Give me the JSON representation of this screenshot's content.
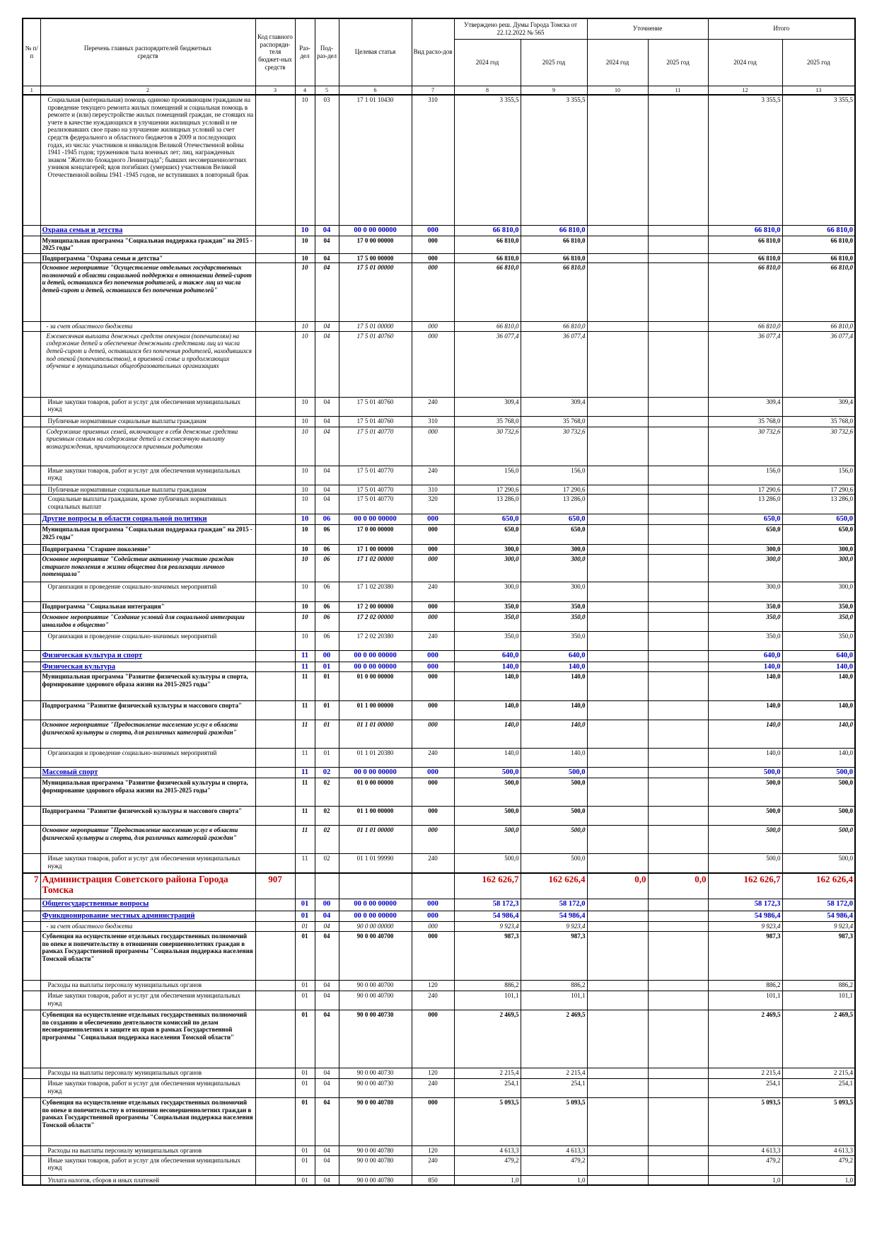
{
  "table": {
    "header": {
      "number": "№ п/п",
      "name": "Перечень главных распорядителей бюджетных средств",
      "code": "Код главного распоряди-теля бюджет-ных средств",
      "section": "Раз-дел",
      "subsection": "Под-раз-дел",
      "target": "Целевая статья",
      "expense_type": "Вид расхо-дов",
      "approved": "Утверждено реш. Думы Города Томска от 22.12.2022 № 565",
      "clarification": "Уточнение",
      "total": "Итого",
      "years": [
        "2024 год",
        "2025 год",
        "2024 год",
        "2025 год",
        "2024 год",
        "2025 год"
      ],
      "column_numbers": [
        1,
        2,
        3,
        4,
        5,
        6,
        7,
        8,
        9,
        10,
        11,
        12,
        13
      ]
    },
    "rows": [
      {
        "style": "plain",
        "cells": [
          null,
          "Социальная (материальная) помощь одиноко проживающим гражданам на проведение текущего ремонта жилых помещений и социальная помощь в ремонте и (или) переустройстве жилых помещений граждан, не стоящих на учете в качестве нуждающихся в улучшении жилищных условий и не реализовавших свое право на улучшение жилищных условий за счет средств федерального и областного бюджетов в 2009 и последующих годах, из числа: участников и инвалидов Великой Отечественной войны 1941 -1945 годов; тружеников тыла военных лет; лиц, награжденных знаком \"Жителю блокадного Ленинграда\"; бывших несовершеннолетних узников концлагерей; вдов погибших (умерших) участников Великой Отечественной войны 1941 -1945 годов, не вступивших в повторный брак",
          null,
          "10",
          "03",
          "17 1 01 10430",
          "310",
          "3 355,5",
          "3 355,5",
          null,
          null,
          "3 355,5",
          "3 355,5"
        ]
      },
      {
        "style": "section",
        "cells": [
          null,
          "Охрана семьи и детства",
          null,
          "10",
          "04",
          "00 0 00 00000",
          "000",
          "66 810,0",
          "66 810,0",
          null,
          null,
          "66 810,0",
          "66 810,0"
        ]
      },
      {
        "style": "bold",
        "cells": [
          null,
          "Муниципальная программа \"Социальная поддержка граждан\" на 2015 - 2025 годы\"",
          null,
          "10",
          "04",
          "17 0 00 00000",
          "000",
          "66 810,0",
          "66 810,0",
          null,
          null,
          "66 810,0",
          "66 810,0"
        ]
      },
      {
        "style": "bold",
        "cells": [
          null,
          "Подпрограмма \"Охрана семьи и детства\"",
          null,
          "10",
          "04",
          "17 5 00 00000",
          "000",
          "66 810,0",
          "66 810,0",
          null,
          null,
          "66 810,0",
          "66 810,0"
        ]
      },
      {
        "style": "bold-italic",
        "cells": [
          null,
          "Основное мероприятие \"Осуществление отдельных государственных полномочий в области социальной поддержки в отношении детей-сирот и детей, оставшихся без попечения родителей, а также лиц из числа детей-сирот и детей, оставшихся без попечения родителей\"",
          null,
          "10",
          "04",
          "17 5 01 00000",
          "000",
          "66 810,0",
          "66 810,0",
          null,
          null,
          "66 810,0",
          "66 810,0"
        ]
      },
      {
        "style": "italic",
        "cells": [
          null,
          "- за счет областного бюджета",
          null,
          "10",
          "04",
          "17 5 01 00000",
          "000",
          "66 810,0",
          "66 810,0",
          null,
          null,
          "66 810,0",
          "66 810,0"
        ]
      },
      {
        "style": "italic",
        "cells": [
          null,
          "Ежемесячная выплата денежных средств опекунам (попечителям) на содержание детей и обеспечение денежными средствами лиц из числа детей-сирот и детей, оставшихся без попечения родителей, находившихся под опекой (попечительством), в приемной семье и продолжающих обучение в муниципальных общеобразовательных организациях",
          null,
          "10",
          "04",
          "17 5 01 40760",
          "000",
          "36 077,4",
          "36 077,4",
          null,
          null,
          "36 077,4",
          "36 077,4"
        ]
      },
      {
        "style": "plain",
        "cells": [
          null,
          "Иные закупки товаров, работ и услуг для обеспечения муниципальных нужд",
          null,
          "10",
          "04",
          "17 5 01 40760",
          "240",
          "309,4",
          "309,4",
          null,
          null,
          "309,4",
          "309,4"
        ]
      },
      {
        "style": "plain",
        "cells": [
          null,
          "Публичные нормативные социальные выплаты гражданам",
          null,
          "10",
          "04",
          "17 5 01 40760",
          "310",
          "35 768,0",
          "35 768,0",
          null,
          null,
          "35 768,0",
          "35 768,0"
        ]
      },
      {
        "style": "italic",
        "cells": [
          null,
          "Содержание приемных семей, включающее в себя денежные средства приемным семьям на содержание детей и ежемесячную выплату вознаграждения, причитающегося приемным родителям",
          null,
          "10",
          "04",
          "17 5 01 40770",
          "000",
          "30 732,6",
          "30 732,6",
          null,
          null,
          "30 732,6",
          "30 732,6"
        ]
      },
      {
        "style": "plain",
        "cells": [
          null,
          "Иные закупки товаров, работ и услуг для обеспечения муниципальных нужд",
          null,
          "10",
          "04",
          "17 5 01 40770",
          "240",
          "156,0",
          "156,0",
          null,
          null,
          "156,0",
          "156,0"
        ]
      },
      {
        "style": "plain",
        "cells": [
          null,
          "Публичные нормативные социальные выплаты гражданам",
          null,
          "10",
          "04",
          "17 5 01 40770",
          "310",
          "17 290,6",
          "17 290,6",
          null,
          null,
          "17 290,6",
          "17 290,6"
        ]
      },
      {
        "style": "plain",
        "cells": [
          null,
          "Социальные выплаты гражданам, кроме публичных нормативных социальных выплат",
          null,
          "10",
          "04",
          "17 5 01 40770",
          "320",
          "13 286,0",
          "13 286,0",
          null,
          null,
          "13 286,0",
          "13 286,0"
        ]
      },
      {
        "style": "section",
        "cells": [
          null,
          "Другие вопросы в области социальной политики",
          null,
          "10",
          "06",
          "00 0 00 00000",
          "000",
          "650,0",
          "650,0",
          null,
          null,
          "650,0",
          "650,0"
        ]
      },
      {
        "style": "bold",
        "cells": [
          null,
          "Муниципальная программа \"Социальная поддержка граждан\" на 2015 - 2025 годы\"",
          null,
          "10",
          "06",
          "17 0 00 00000",
          "000",
          "650,0",
          "650,0",
          null,
          null,
          "650,0",
          "650,0"
        ]
      },
      {
        "style": "bold",
        "cells": [
          null,
          "Подпрограмма \"Старшее поколение\"",
          null,
          "10",
          "06",
          "17 1 00 00000",
          "000",
          "300,0",
          "300,0",
          null,
          null,
          "300,0",
          "300,0"
        ]
      },
      {
        "style": "bold-italic",
        "cells": [
          null,
          "Основное мероприятие \"Содействие активному участию граждан старшего поколения в жизни общества для реализации личного потенциала\"",
          null,
          "10",
          "06",
          "17 1 02 00000",
          "000",
          "300,0",
          "300,0",
          null,
          null,
          "300,0",
          "300,0"
        ]
      },
      {
        "style": "plain",
        "cells": [
          null,
          "Организация и проведение социально-значимых мероприятий",
          null,
          "10",
          "06",
          "17 1 02 20380",
          "240",
          "300,0",
          "300,0",
          null,
          null,
          "300,0",
          "300,0"
        ]
      },
      {
        "style": "bold",
        "cells": [
          null,
          "Подпрограмма \"Социальная интеграция\"",
          null,
          "10",
          "06",
          "17 2 00 00000",
          "000",
          "350,0",
          "350,0",
          null,
          null,
          "350,0",
          "350,0"
        ]
      },
      {
        "style": "bold-italic",
        "cells": [
          null,
          "Основное мероприятие \"Создание условий для социальной интеграции инвалидов в общество\"",
          null,
          "10",
          "06",
          "17 2 02 00000",
          "000",
          "350,0",
          "350,0",
          null,
          null,
          "350,0",
          "350,0"
        ]
      },
      {
        "style": "plain",
        "cells": [
          null,
          "Организация и проведение социально-значимых мероприятий",
          null,
          "10",
          "06",
          "17 2 02 20380",
          "240",
          "350,0",
          "350,0",
          null,
          null,
          "350,0",
          "350,0"
        ]
      },
      {
        "style": "section",
        "cells": [
          null,
          "Физическая культура и спорт",
          null,
          "11",
          "00",
          "00 0 00 00000",
          "000",
          "640,0",
          "640,0",
          null,
          null,
          "640,0",
          "640,0"
        ]
      },
      {
        "style": "section",
        "cells": [
          null,
          "Физическая культура",
          null,
          "11",
          "01",
          "00 0 00 00000",
          "000",
          "140,0",
          "140,0",
          null,
          null,
          "140,0",
          "140,0"
        ]
      },
      {
        "style": "bold",
        "cells": [
          null,
          "Муниципальная программа \"Развитие физической культуры и спорта, формирование здорового образа жизни на 2015-2025 годы\"",
          null,
          "11",
          "01",
          "01 0 00 00000",
          "000",
          "140,0",
          "140,0",
          null,
          null,
          "140,0",
          "140,0"
        ]
      },
      {
        "style": "bold",
        "cells": [
          null,
          "Подпрограмма \"Развитие физической культуры и массового спорта\"",
          null,
          "11",
          "01",
          "01 1 00 00000",
          "000",
          "140,0",
          "140,0",
          null,
          null,
          "140,0",
          "140,0"
        ]
      },
      {
        "style": "bold-italic",
        "cells": [
          null,
          "Основное мероприятие \"Предоставление населению услуг в области физической культуры и спорта, для различных категорий граждан\"",
          null,
          "11",
          "01",
          "01 1 01 00000",
          "000",
          "140,0",
          "140,0",
          null,
          null,
          "140,0",
          "140,0"
        ]
      },
      {
        "style": "plain",
        "cells": [
          null,
          "Организация и проведение социально-значимых мероприятий",
          null,
          "11",
          "01",
          "01 1 01 20380",
          "240",
          "140,0",
          "140,0",
          null,
          null,
          "140,0",
          "140,0"
        ]
      },
      {
        "style": "section",
        "cells": [
          null,
          "Массовый спорт",
          null,
          "11",
          "02",
          "00 0 00 00000",
          "000",
          "500,0",
          "500,0",
          null,
          null,
          "500,0",
          "500,0"
        ]
      },
      {
        "style": "bold",
        "cells": [
          null,
          "Муниципальная программа \"Развитие физической культуры и спорта, формирование здорового образа жизни на 2015-2025 годы\"",
          null,
          "11",
          "02",
          "01 0 00 00000",
          "000",
          "500,0",
          "500,0",
          null,
          null,
          "500,0",
          "500,0"
        ]
      },
      {
        "style": "bold",
        "cells": [
          null,
          "Подпрограмма \"Развитие физической культуры и массового спорта\"",
          null,
          "11",
          "02",
          "01 1 00 00000",
          "000",
          "500,0",
          "500,0",
          null,
          null,
          "500,0",
          "500,0"
        ]
      },
      {
        "style": "bold-italic",
        "cells": [
          null,
          "Основное мероприятие \"Предоставление населению услуг в области физической культуры и спорта, для различных категорий граждан\"",
          null,
          "11",
          "02",
          "01 1 01 00000",
          "000",
          "500,0",
          "500,0",
          null,
          null,
          "500,0",
          "500,0"
        ]
      },
      {
        "style": "plain",
        "cells": [
          null,
          "Иные закупки товаров, работ и услуг для обеспечения муниципальных нужд",
          null,
          "11",
          "02",
          "01 1 01 99990",
          "240",
          "500,0",
          "500,0",
          null,
          null,
          "500,0",
          "500,0"
        ]
      },
      {
        "style": "org",
        "cells": [
          "7",
          "Администрация Советского района Города Томска",
          "907",
          null,
          null,
          null,
          null,
          "162 626,7",
          "162 626,4",
          "0,0",
          "0,0",
          "162 626,7",
          "162 626,4"
        ]
      },
      {
        "style": "section",
        "cells": [
          null,
          "Общегосударственные вопросы",
          null,
          "01",
          "00",
          "00 0 00 00000",
          "000",
          "58 172,3",
          "58 172,0",
          null,
          null,
          "58 172,3",
          "58 172,0"
        ]
      },
      {
        "style": "section",
        "cells": [
          null,
          "Функционирование местных администраций",
          null,
          "01",
          "04",
          "00 0 00 00000",
          "000",
          "54 986,4",
          "54 986,4",
          null,
          null,
          "54 986,4",
          "54 986,4"
        ]
      },
      {
        "style": "italic",
        "cells": [
          null,
          "- за счет областного бюджета",
          null,
          "01",
          "04",
          "90 0 00 00000",
          "000",
          "9 923,4",
          "9 923,4",
          null,
          null,
          "9 923,4",
          "9 923,4"
        ]
      },
      {
        "style": "bold",
        "cells": [
          null,
          "Субвенция на осуществление отдельных государственных полномочий по опеке и попечительству в отношении совершеннолетних граждан в рамках Государственной программы \"Социальная поддержка населения Томской области\"",
          null,
          "01",
          "04",
          "90 0 00 40700",
          "000",
          "987,3",
          "987,3",
          null,
          null,
          "987,3",
          "987,3"
        ]
      },
      {
        "style": "plain",
        "cells": [
          null,
          "Расходы на выплаты персоналу муниципальных органов",
          null,
          "01",
          "04",
          "90 0 00 40700",
          "120",
          "886,2",
          "886,2",
          null,
          null,
          "886,2",
          "886,2"
        ]
      },
      {
        "style": "plain",
        "cells": [
          null,
          "Иные закупки товаров, работ и услуг для обеспечения муниципальных нужд",
          null,
          "01",
          "04",
          "90 0 00 40700",
          "240",
          "101,1",
          "101,1",
          null,
          null,
          "101,1",
          "101,1"
        ]
      },
      {
        "style": "bold",
        "cells": [
          null,
          "Субвенция на осуществление отдельных государственных полномочий по созданию и обеспечению деятельности комиссий по делам несовершеннолетних и защите их прав в рамках Государственной программы \"Социальная поддержка населения Томской области\"",
          null,
          "01",
          "04",
          "90 0 00 40730",
          "000",
          "2 469,5",
          "2 469,5",
          null,
          null,
          "2 469,5",
          "2 469,5"
        ]
      },
      {
        "style": "plain",
        "cells": [
          null,
          "Расходы на выплаты персоналу муниципальных органов",
          null,
          "01",
          "04",
          "90 0 00 40730",
          "120",
          "2 215,4",
          "2 215,4",
          null,
          null,
          "2 215,4",
          "2 215,4"
        ]
      },
      {
        "style": "plain",
        "cells": [
          null,
          "Иные закупки товаров, работ и услуг для обеспечения муниципальных нужд",
          null,
          "01",
          "04",
          "90 0 00 40730",
          "240",
          "254,1",
          "254,1",
          null,
          null,
          "254,1",
          "254,1"
        ]
      },
      {
        "style": "bold",
        "cells": [
          null,
          "Субвенция на осуществление отдельных государственных полномочий по опеке и попечительству в отношении несовершеннолетних граждан в рамках Государственной программы \"Социальная поддержка населения Томской области\"",
          null,
          "01",
          "04",
          "90 0 00 40780",
          "000",
          "5 093,5",
          "5 093,5",
          null,
          null,
          "5 093,5",
          "5 093,5"
        ]
      },
      {
        "style": "plain",
        "cells": [
          null,
          "Расходы на выплаты персоналу муниципальных органов",
          null,
          "01",
          "04",
          "90 0 00 40780",
          "120",
          "4 613,3",
          "4 613,3",
          null,
          null,
          "4 613,3",
          "4 613,3"
        ]
      },
      {
        "style": "plain",
        "cells": [
          null,
          "Иные закупки товаров, работ и услуг для обеспечения муниципальных нужд",
          null,
          "01",
          "04",
          "90 0 00 40780",
          "240",
          "479,2",
          "479,2",
          null,
          null,
          "479,2",
          "479,2"
        ]
      },
      {
        "style": "plain",
        "cells": [
          null,
          "Уплата налогов, сборов и иных платежей",
          null,
          "01",
          "04",
          "90 0 00 40780",
          "850",
          "1,0",
          "1,0",
          null,
          null,
          "1,0",
          "1,0"
        ]
      }
    ]
  }
}
